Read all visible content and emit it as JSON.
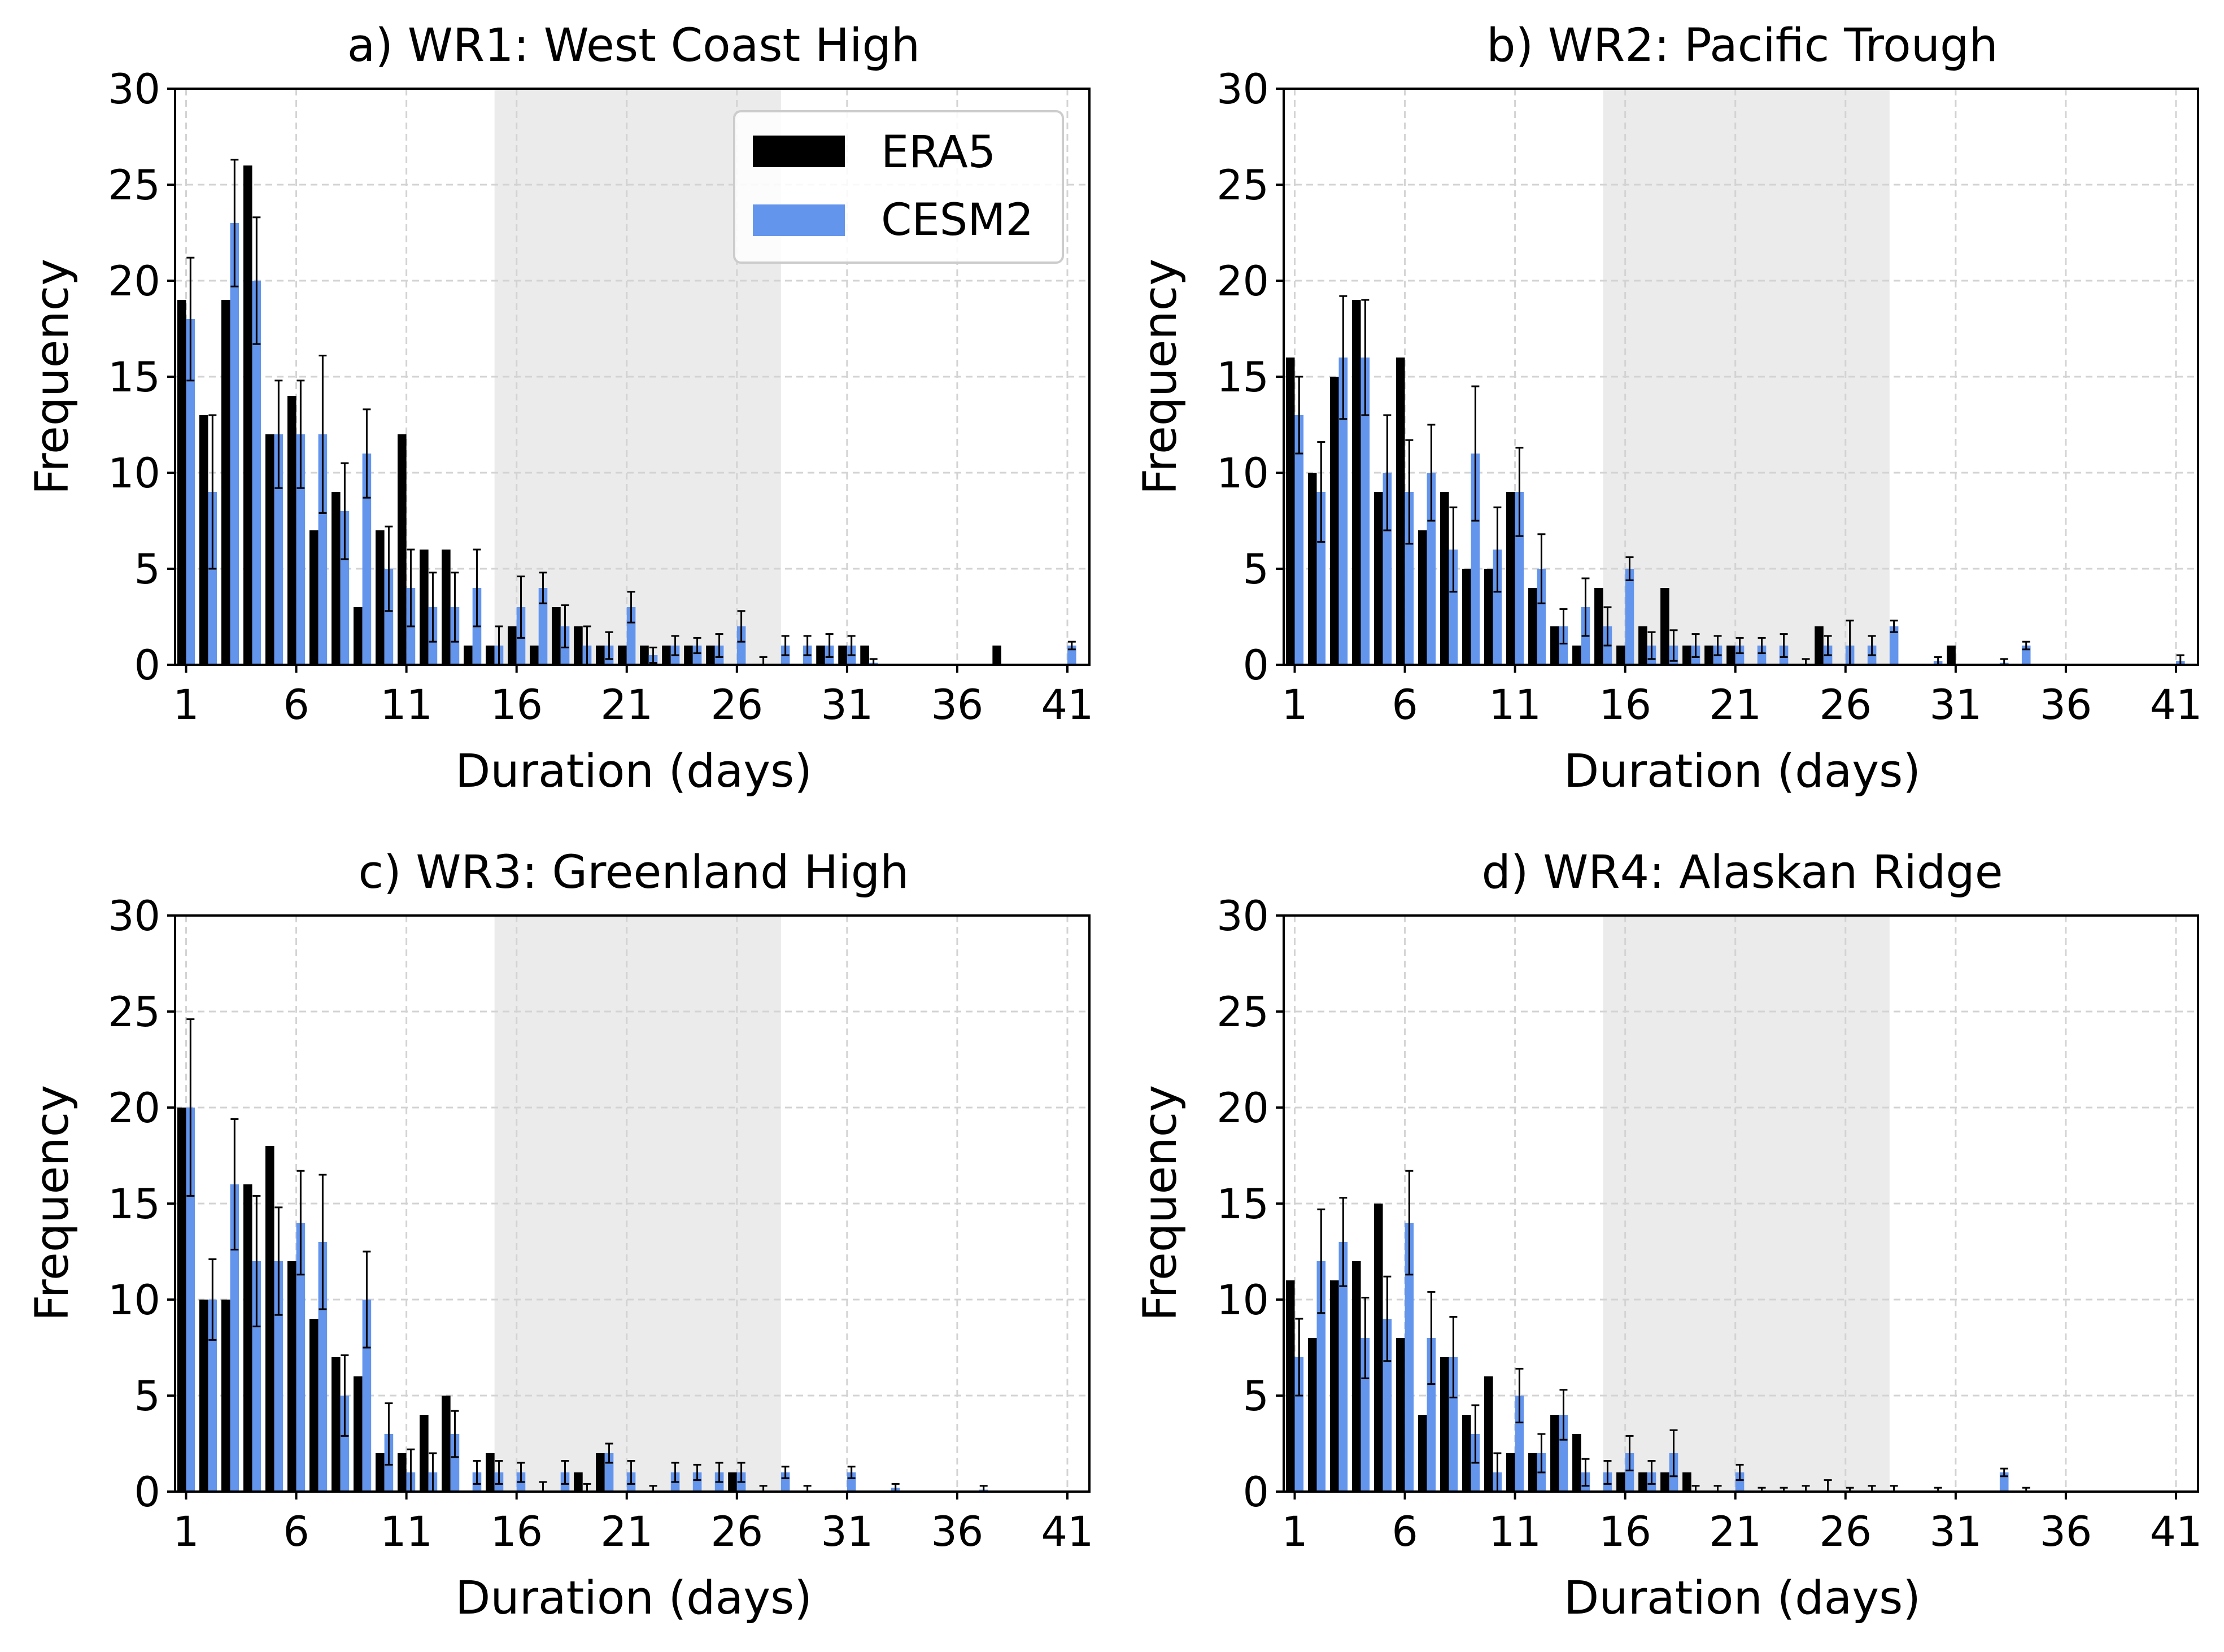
{
  "colors": {
    "era5": "#000000",
    "cesm2": "#6495ed",
    "shade": "#ebebeb",
    "grid": "#d3d3d3"
  },
  "legend": {
    "era5_label": "ERA5",
    "cesm2_label": "CESM2",
    "placement": "upper-right of panel a"
  },
  "chart_data": [
    {
      "type": "bar",
      "title": "a) WR1: West Coast High",
      "xlabel": "Duration (days)",
      "ylabel": "Frequency",
      "xticks": [
        1,
        6,
        11,
        16,
        21,
        26,
        31,
        36,
        41
      ],
      "yticks": [
        0,
        5,
        10,
        15,
        20,
        25,
        30
      ],
      "xlim": [
        0.5,
        42
      ],
      "ylim": [
        0,
        30
      ],
      "grid": true,
      "shaded_range": [
        15,
        28
      ],
      "show_legend": true,
      "series": [
        {
          "name": "ERA5",
          "x": [
            1,
            2,
            3,
            4,
            5,
            6,
            7,
            8,
            9,
            10,
            11,
            12,
            13,
            14,
            15,
            16,
            17,
            18,
            19,
            20,
            21,
            22,
            23,
            24,
            25,
            26,
            28,
            29,
            30,
            31,
            32,
            38
          ],
          "values": [
            19,
            13,
            19,
            26,
            12,
            14,
            7,
            9,
            3,
            7,
            12,
            6,
            6,
            1,
            1,
            2,
            1,
            3,
            2,
            1,
            1,
            1,
            1,
            1,
            1,
            0,
            0,
            0,
            1,
            1,
            1,
            1
          ]
        },
        {
          "name": "CESM2",
          "x": [
            1,
            2,
            3,
            4,
            5,
            6,
            7,
            8,
            9,
            10,
            11,
            12,
            13,
            14,
            15,
            16,
            17,
            18,
            19,
            20,
            21,
            22,
            23,
            24,
            25,
            26,
            27,
            28,
            29,
            30,
            31,
            32,
            41
          ],
          "values": [
            18,
            9,
            23,
            20,
            12,
            12,
            12,
            8,
            11,
            5,
            4,
            3,
            3,
            4,
            1,
            3,
            4,
            2,
            1,
            1,
            3,
            0.5,
            1,
            1,
            1,
            2,
            0,
            1,
            1,
            1,
            1,
            0.1,
            1
          ],
          "errors": [
            3.2,
            4,
            3.3,
            3.3,
            2.8,
            2.8,
            4.1,
            2.5,
            2.3,
            2.2,
            2.0,
            1.8,
            1.8,
            2.0,
            1.0,
            1.6,
            0.8,
            1.1,
            1.0,
            0.7,
            0.8,
            0.4,
            0.5,
            0.4,
            0.6,
            0.8,
            0.4,
            0.5,
            0.5,
            0.6,
            0.5,
            0.2,
            0.2
          ]
        }
      ]
    },
    {
      "type": "bar",
      "title": "b) WR2: Pacific Trough",
      "xlabel": "Duration (days)",
      "ylabel": "Frequency",
      "xticks": [
        1,
        6,
        11,
        16,
        21,
        26,
        31,
        36,
        41
      ],
      "yticks": [
        0,
        5,
        10,
        15,
        20,
        25,
        30
      ],
      "xlim": [
        0.5,
        42
      ],
      "ylim": [
        0,
        30
      ],
      "grid": true,
      "shaded_range": [
        15,
        28
      ],
      "show_legend": false,
      "series": [
        {
          "name": "ERA5",
          "x": [
            1,
            2,
            3,
            4,
            5,
            6,
            7,
            8,
            9,
            10,
            11,
            12,
            13,
            14,
            15,
            16,
            17,
            18,
            19,
            20,
            21,
            25,
            31
          ],
          "values": [
            16,
            10,
            15,
            19,
            9,
            16,
            7,
            9,
            5,
            5,
            9,
            4,
            2,
            1,
            4,
            1,
            2,
            4,
            1,
            1,
            1,
            2,
            1
          ]
        },
        {
          "name": "CESM2",
          "x": [
            1,
            2,
            3,
            4,
            5,
            6,
            7,
            8,
            9,
            10,
            11,
            12,
            13,
            14,
            15,
            16,
            17,
            18,
            19,
            20,
            21,
            22,
            23,
            24,
            25,
            26,
            27,
            28,
            30,
            33,
            34,
            41
          ],
          "values": [
            13,
            9,
            16,
            16,
            10,
            9,
            10,
            6,
            11,
            6,
            9,
            5,
            2,
            3,
            2,
            5,
            1,
            1,
            1,
            1,
            1,
            1,
            1,
            0,
            1,
            1,
            1,
            2,
            0.2,
            0.1,
            1,
            0.2
          ],
          "errors": [
            2,
            2.6,
            3.2,
            3,
            3,
            2.7,
            2.5,
            2.2,
            3.5,
            2.2,
            2.3,
            1.8,
            0.9,
            1.5,
            1,
            0.6,
            0.7,
            0.8,
            0.6,
            0.5,
            0.4,
            0.4,
            0.6,
            0.3,
            0.5,
            1.3,
            0.5,
            0.3,
            0.2,
            0.2,
            0.2,
            0.3
          ]
        }
      ]
    },
    {
      "type": "bar",
      "title": "c) WR3: Greenland High",
      "xlabel": "Duration (days)",
      "ylabel": "Frequency",
      "xticks": [
        1,
        6,
        11,
        16,
        21,
        26,
        31,
        36,
        41
      ],
      "yticks": [
        0,
        5,
        10,
        15,
        20,
        25,
        30
      ],
      "xlim": [
        0.5,
        42
      ],
      "ylim": [
        0,
        30
      ],
      "grid": true,
      "shaded_range": [
        15,
        28
      ],
      "show_legend": false,
      "series": [
        {
          "name": "ERA5",
          "x": [
            1,
            2,
            3,
            4,
            5,
            6,
            7,
            8,
            9,
            10,
            11,
            12,
            13,
            15,
            19,
            20,
            26
          ],
          "values": [
            20,
            10,
            10,
            16,
            18,
            12,
            9,
            7,
            6,
            2,
            2,
            4,
            5,
            2,
            1,
            2,
            1
          ]
        },
        {
          "name": "CESM2",
          "x": [
            1,
            2,
            3,
            4,
            5,
            6,
            7,
            8,
            9,
            10,
            11,
            12,
            13,
            14,
            15,
            16,
            17,
            18,
            19,
            20,
            21,
            22,
            23,
            24,
            25,
            26,
            27,
            28,
            29,
            31,
            33,
            37
          ],
          "values": [
            20,
            10,
            16,
            12,
            12,
            14,
            13,
            5,
            10,
            3,
            1,
            1,
            3,
            1,
            1,
            1,
            0,
            1,
            0,
            2,
            1,
            0,
            1,
            1,
            1,
            1,
            0,
            1,
            0,
            1,
            0.2,
            0.1
          ],
          "errors": [
            4.6,
            2.1,
            3.4,
            3.4,
            2.8,
            2.7,
            3.5,
            2.1,
            2.5,
            1.6,
            1.2,
            1.0,
            1.2,
            0.6,
            0.6,
            0.5,
            0.5,
            0.6,
            0.4,
            0.5,
            0.6,
            0.3,
            0.5,
            0.4,
            0.5,
            0.5,
            0.3,
            0.3,
            0.3,
            0.3,
            0.2,
            0.2
          ]
        }
      ]
    },
    {
      "type": "bar",
      "title": "d) WR4: Alaskan Ridge",
      "xlabel": "Duration (days)",
      "ylabel": "Frequency",
      "xticks": [
        1,
        6,
        11,
        16,
        21,
        26,
        31,
        36,
        41
      ],
      "yticks": [
        0,
        5,
        10,
        15,
        20,
        25,
        30
      ],
      "xlim": [
        0.5,
        42
      ],
      "ylim": [
        0,
        30
      ],
      "grid": true,
      "shaded_range": [
        15,
        28
      ],
      "show_legend": false,
      "series": [
        {
          "name": "ERA5",
          "x": [
            1,
            2,
            3,
            4,
            5,
            6,
            7,
            8,
            9,
            10,
            11,
            12,
            13,
            14,
            15,
            16,
            17,
            18,
            19
          ],
          "values": [
            11,
            8,
            11,
            12,
            15,
            8,
            4,
            7,
            4,
            6,
            2,
            2,
            4,
            3,
            0,
            1,
            1,
            1,
            1
          ]
        },
        {
          "name": "CESM2",
          "x": [
            1,
            2,
            3,
            4,
            5,
            6,
            7,
            8,
            9,
            10,
            11,
            12,
            13,
            14,
            15,
            16,
            17,
            18,
            19,
            20,
            21,
            22,
            23,
            24,
            25,
            26,
            27,
            28,
            30,
            33,
            34
          ],
          "values": [
            7,
            12,
            13,
            8,
            9,
            14,
            8,
            7,
            3,
            1,
            5,
            2,
            4,
            1,
            1,
            2,
            1,
            2,
            0,
            0,
            1,
            0,
            0,
            0,
            0,
            0,
            0,
            0,
            0,
            1,
            0
          ],
          "errors": [
            2,
            2.7,
            2.3,
            2.1,
            2.2,
            2.7,
            2.4,
            2.1,
            1.5,
            1.0,
            1.4,
            1.0,
            1.3,
            0.7,
            0.6,
            0.9,
            0.6,
            1.2,
            0.3,
            0.3,
            0.4,
            0.2,
            0.2,
            0.3,
            0.6,
            0.2,
            0.3,
            0.3,
            0.2,
            0.2,
            0.2
          ]
        }
      ]
    }
  ]
}
